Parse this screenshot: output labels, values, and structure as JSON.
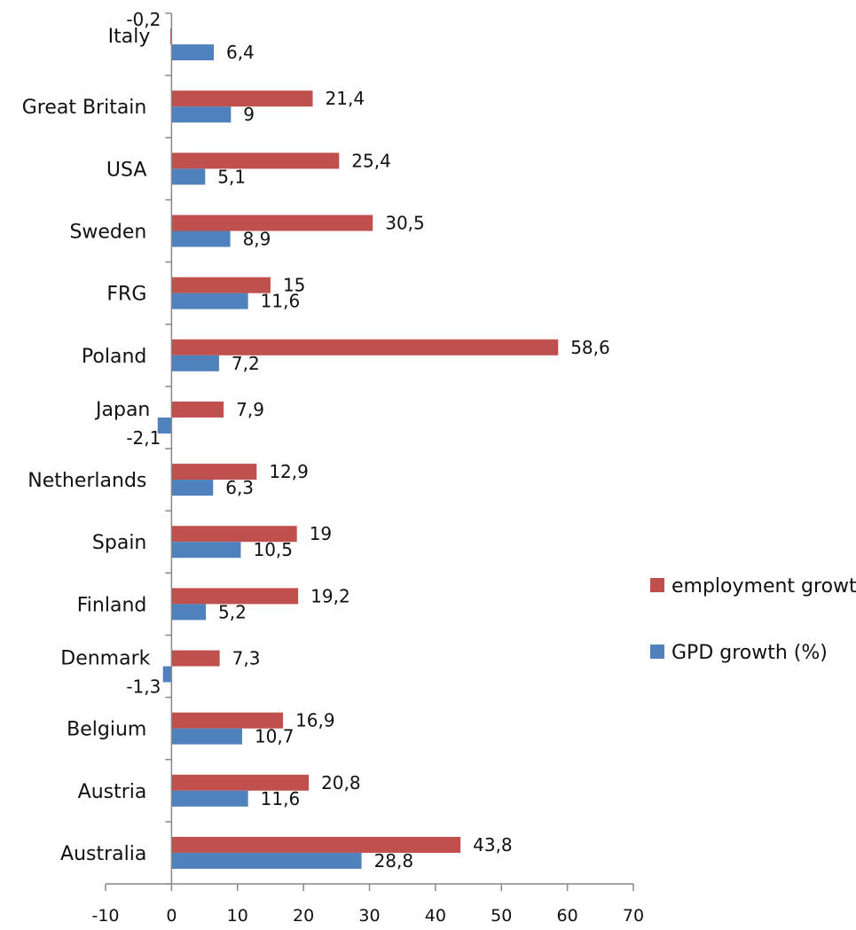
{
  "chart_data": {
    "type": "bar",
    "orientation": "horizontal",
    "categories": [
      "Australia",
      "Austria",
      "Belgium",
      "Denmark",
      "Finland",
      "Spain",
      "Netherlands",
      "Japan",
      "Poland",
      "FRG",
      "Sweden",
      "USA",
      "Great Britain",
      "Italy"
    ],
    "series": [
      {
        "name": "employment growth (%)",
        "color": "#c0504d",
        "values": [
          43.8,
          20.8,
          16.9,
          7.3,
          19.2,
          19,
          12.9,
          7.9,
          58.6,
          15,
          30.5,
          25.4,
          21.4,
          -0.2
        ],
        "labels": [
          "43,8",
          "20,8",
          "16,9",
          "7,3",
          "19,2",
          "19",
          "12,9",
          "7,9",
          "58,6",
          "15",
          "30,5",
          "25,4",
          "21,4",
          "-0,2"
        ]
      },
      {
        "name": "GPD growth (%)",
        "color": "#4f81bd",
        "values": [
          28.8,
          11.6,
          10.7,
          -1.3,
          5.2,
          10.5,
          6.3,
          -2.1,
          7.2,
          11.6,
          8.9,
          5.1,
          9,
          6.4
        ],
        "labels": [
          "28,8",
          "11,6",
          "10,7",
          "-1,3",
          "5,2",
          "10,5",
          "6,3",
          "-2,1",
          "7,2",
          "11,6",
          "8,9",
          "5,1",
          "9",
          "6,4"
        ]
      }
    ],
    "xlim": [
      -10,
      70
    ],
    "xticks": [
      -10,
      0,
      10,
      20,
      30,
      40,
      50,
      60,
      70
    ],
    "title": "",
    "xlabel": "",
    "ylabel": "",
    "grid": false,
    "legend_position": "right"
  }
}
